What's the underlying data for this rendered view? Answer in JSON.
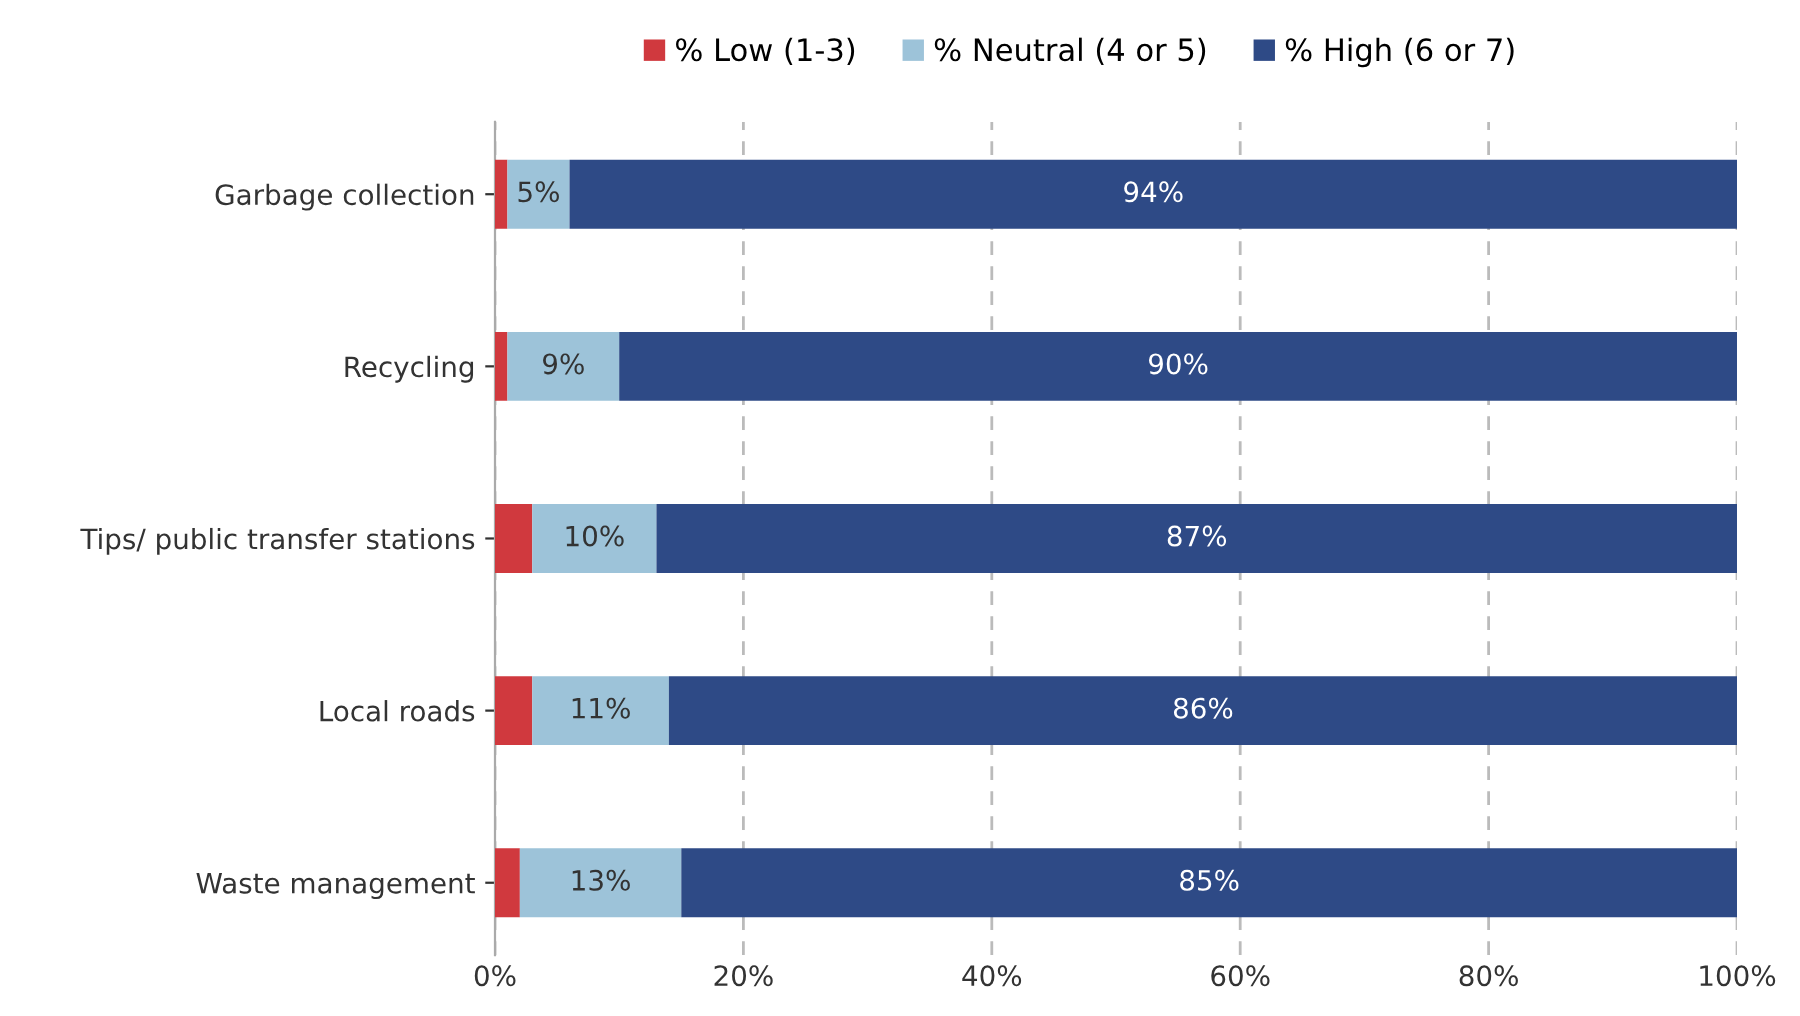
{
  "chart_data": {
    "type": "bar",
    "orientation": "horizontal",
    "stacked": true,
    "categories": [
      "Garbage collection",
      "Recycling",
      "Tips/ public transfer stations",
      "Local roads",
      "Waste management"
    ],
    "series": [
      {
        "name": "% Low (1-3)",
        "color": "#d0393e",
        "values": [
          1,
          1,
          3,
          3,
          2
        ],
        "value_labels": [
          null,
          null,
          null,
          null,
          null
        ]
      },
      {
        "name": "% Neutral (4 or 5)",
        "color": "#9dc3d9",
        "values": [
          5,
          9,
          10,
          11,
          13
        ],
        "value_labels": [
          "5%",
          "9%",
          "10%",
          "11%",
          "13%"
        ]
      },
      {
        "name": "% High (6 or 7)",
        "color": "#2e4a86",
        "values": [
          94,
          90,
          87,
          86,
          85
        ],
        "value_labels": [
          "94%",
          "90%",
          "87%",
          "86%",
          "85%"
        ]
      }
    ],
    "xlim": [
      0,
      100
    ],
    "xticks": [
      {
        "value": 0,
        "label": "0%"
      },
      {
        "value": 20,
        "label": "20%"
      },
      {
        "value": 40,
        "label": "40%"
      },
      {
        "value": 60,
        "label": "60%"
      },
      {
        "value": 80,
        "label": "80%"
      },
      {
        "value": 100,
        "label": "100%"
      }
    ],
    "grid": "x",
    "legend": "top"
  }
}
